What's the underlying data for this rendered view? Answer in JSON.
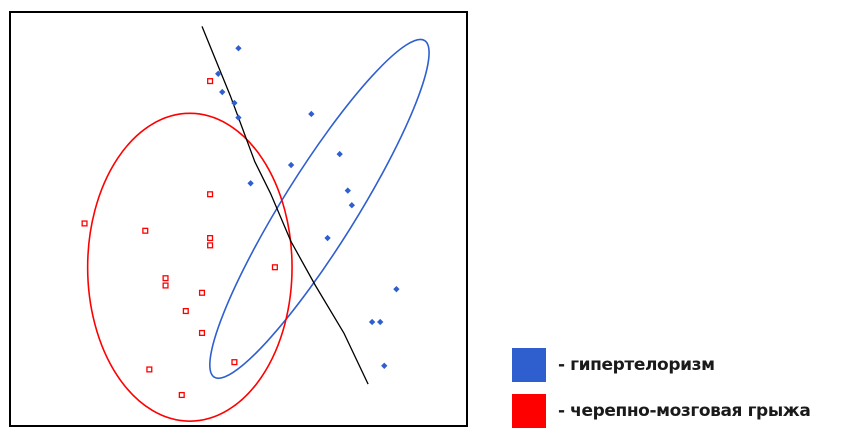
{
  "chart_data": {
    "type": "scatter",
    "title": "",
    "xlabel": "",
    "ylabel": "",
    "xlim": [
      0,
      100
    ],
    "ylim": [
      0,
      100
    ],
    "grid": false,
    "legend_position": "bottom-right",
    "series": [
      {
        "name": "- гипертелоризм",
        "color": "#2f5fcf",
        "marker": "diamond",
        "points": [
          [
            49,
            95
          ],
          [
            44,
            88
          ],
          [
            45,
            83
          ],
          [
            48,
            80
          ],
          [
            49,
            76
          ],
          [
            67,
            77
          ],
          [
            62,
            63
          ],
          [
            74,
            66
          ],
          [
            52,
            58
          ],
          [
            76,
            56
          ],
          [
            77,
            52
          ],
          [
            71,
            43
          ],
          [
            88,
            29
          ],
          [
            84,
            20
          ],
          [
            82,
            20
          ],
          [
            85,
            8
          ]
        ],
        "ellipse": {
          "cx": 69,
          "cy": 51,
          "rx": 49,
          "ry": 10,
          "angle_deg": -58
        }
      },
      {
        "name": "- черепно-мозговая грыжа",
        "color": "#ff0000",
        "marker": "square",
        "points": [
          [
            42,
            86
          ],
          [
            11,
            47
          ],
          [
            42,
            55
          ],
          [
            26,
            45
          ],
          [
            42,
            43
          ],
          [
            42,
            41
          ],
          [
            58,
            35
          ],
          [
            31,
            32
          ],
          [
            31,
            30
          ],
          [
            40,
            28
          ],
          [
            36,
            23
          ],
          [
            40,
            17
          ],
          [
            48,
            9
          ],
          [
            27,
            7
          ],
          [
            35,
            0
          ]
        ],
        "ellipse": {
          "cx": 37,
          "cy": 35,
          "rx": 38,
          "ry": 28,
          "angle_deg": 90
        }
      }
    ],
    "separator_line": {
      "color": "#000000",
      "points": [
        [
          40,
          101
        ],
        [
          47,
          82
        ],
        [
          53,
          64
        ],
        [
          57,
          55
        ],
        [
          62,
          42
        ],
        [
          68,
          30
        ],
        [
          75,
          17
        ],
        [
          81,
          3
        ]
      ]
    }
  }
}
